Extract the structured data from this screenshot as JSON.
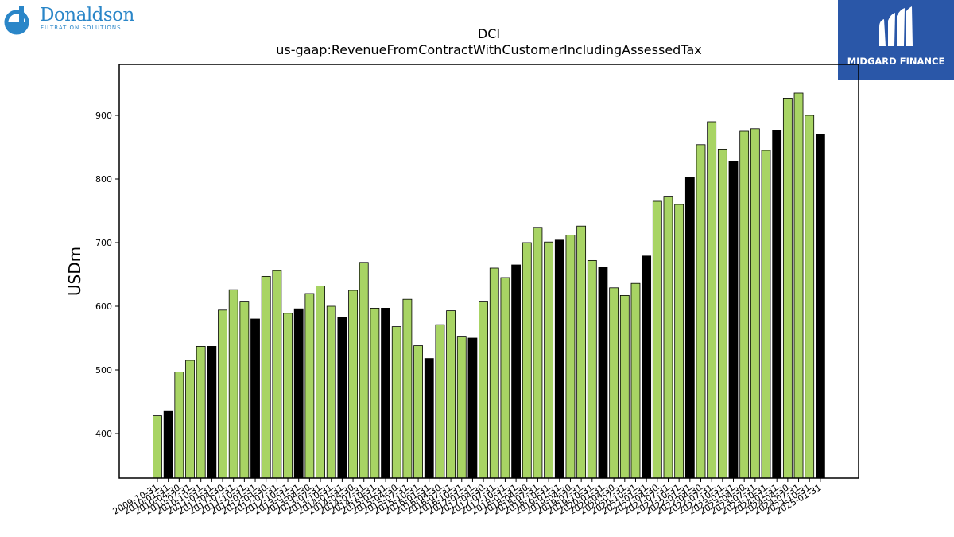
{
  "logos": {
    "left_brand": "Donaldson",
    "left_tagline": "FILTRATION SOLUTIONS",
    "right_brand": "MIDGARD FINANCE"
  },
  "chart_data": {
    "type": "bar",
    "title": "DCI",
    "subtitle": "us-gaap:RevenueFromContractWithCustomerIncludingAssessedTax",
    "xlabel": "",
    "ylabel": "USDm",
    "ylim": [
      330,
      980
    ],
    "yticks": [
      400,
      500,
      600,
      700,
      800,
      900
    ],
    "grid": false,
    "colors": {
      "quarter": "#a8d464",
      "fiscal_year_end": "#000000"
    },
    "x": [
      "2009-10-31",
      "2010-01-31",
      "2010-04-30",
      "2010-07-31",
      "2010-10-31",
      "2011-01-31",
      "2011-04-30",
      "2011-07-31",
      "2011-10-31",
      "2012-01-31",
      "2012-04-30",
      "2012-07-31",
      "2012-10-31",
      "2013-01-31",
      "2013-04-30",
      "2013-07-31",
      "2013-10-31",
      "2014-01-31",
      "2014-04-30",
      "2014-07-31",
      "2014-10-31",
      "2015-01-31",
      "2015-04-30",
      "2015-07-31",
      "2015-10-31",
      "2016-01-31",
      "2016-04-30",
      "2016-07-31",
      "2016-10-31",
      "2017-01-31",
      "2017-04-30",
      "2017-07-31",
      "2017-10-31",
      "2018-01-31",
      "2018-04-30",
      "2018-07-31",
      "2018-10-31",
      "2019-01-31",
      "2019-04-30",
      "2019-07-31",
      "2019-10-31",
      "2020-01-31",
      "2020-04-30",
      "2020-07-31",
      "2020-10-31",
      "2021-01-31",
      "2021-04-30",
      "2021-07-31",
      "2021-10-31",
      "2022-01-31",
      "2022-04-30",
      "2022-07-31",
      "2022-10-31",
      "2023-01-31",
      "2023-04-30",
      "2023-07-31",
      "2023-10-31",
      "2024-01-31",
      "2024-04-30",
      "2024-07-31",
      "2024-10-31",
      "2025-01-31"
    ],
    "values": [
      428,
      436,
      497,
      515,
      537,
      537,
      594,
      626,
      608,
      580,
      647,
      656,
      589,
      596,
      620,
      632,
      600,
      582,
      625,
      669,
      597,
      597,
      568,
      611,
      538,
      518,
      571,
      593,
      553,
      550,
      608,
      660,
      645,
      665,
      700,
      724,
      701,
      704,
      712,
      726,
      672,
      662,
      629,
      617,
      636,
      679,
      765,
      773,
      760,
      802,
      854,
      890,
      847,
      828,
      875,
      879,
      845,
      876,
      927,
      935,
      900,
      870
    ],
    "fiscal_year_end_flags": [
      0,
      1,
      0,
      0,
      0,
      1,
      0,
      0,
      0,
      1,
      0,
      0,
      0,
      1,
      0,
      0,
      0,
      1,
      0,
      0,
      0,
      1,
      0,
      0,
      0,
      1,
      0,
      0,
      0,
      1,
      0,
      0,
      0,
      1,
      0,
      0,
      0,
      1,
      0,
      0,
      0,
      1,
      0,
      0,
      0,
      1,
      0,
      0,
      0,
      1,
      0,
      0,
      0,
      1,
      0,
      0,
      0,
      1,
      0,
      0,
      0,
      1
    ]
  }
}
